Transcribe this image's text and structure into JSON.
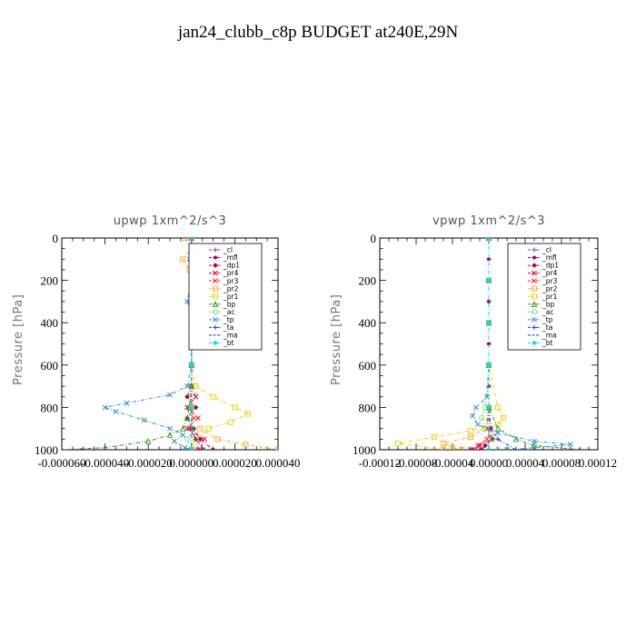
{
  "figure": {
    "title": "jan24_clubb_c8p  BUDGET at240E,29N"
  },
  "chart_data": [
    {
      "type": "line",
      "title": "upwp   1xm^2/s^3",
      "ylabel": "Pressure [hPa]",
      "xlabel": "",
      "xlim": [
        -6e-05,
        4e-05
      ],
      "ylim": [
        1000,
        0
      ],
      "xticks": [
        "-0.000060",
        "-0.000040",
        "-0.000020",
        "0.000000",
        "0.000020",
        "0.000040"
      ],
      "yticks": [
        "0",
        "200",
        "400",
        "600",
        "800",
        "1000"
      ],
      "legend_position": "top-right",
      "series": [
        {
          "name": "_cl",
          "color": "#7b3fd0",
          "marker": "plus",
          "y": [
            0,
            100,
            200,
            300,
            400,
            500,
            600,
            700,
            800,
            900,
            1000
          ],
          "x": [
            0,
            0,
            0,
            0,
            0,
            0,
            0,
            0,
            0,
            0,
            0
          ]
        },
        {
          "name": "_mfl",
          "color": "#9b006f",
          "marker": "dot",
          "y": [
            0,
            100,
            200,
            300,
            400,
            500,
            600,
            700,
            800,
            900,
            1000
          ],
          "x": [
            0,
            0,
            0,
            0,
            0,
            0,
            0,
            0,
            0,
            0,
            0
          ]
        },
        {
          "name": "_dp1",
          "color": "#b0003c",
          "marker": "diamond",
          "y": [
            0,
            100,
            200,
            300,
            400,
            500,
            600,
            700,
            750,
            800,
            850,
            900,
            950,
            1000
          ],
          "x": [
            0,
            0,
            0,
            0,
            0,
            0,
            0,
            0,
            -2e-06,
            2e-06,
            -2e-06,
            1e-06,
            4e-06,
            1e-05
          ]
        },
        {
          "name": "_pr4",
          "color": "#e8003a",
          "marker": "x",
          "y": [
            0,
            100,
            200,
            300,
            400,
            500,
            600,
            700,
            750,
            800,
            850,
            900,
            950,
            1000
          ],
          "x": [
            0,
            0,
            0,
            0,
            0,
            0,
            0,
            0,
            2e-06,
            -2e-06,
            3e-06,
            -2e-06,
            6e-06,
            4e-06
          ]
        },
        {
          "name": "_pr3",
          "color": "#ff2030",
          "marker": "x",
          "y": [
            0,
            200,
            400,
            600,
            700,
            800,
            850,
            900,
            950,
            1000
          ],
          "x": [
            0,
            0,
            0,
            0,
            0,
            -1e-06,
            1e-06,
            -1e-06,
            2e-06,
            3e-06
          ]
        },
        {
          "name": "_pr2",
          "color": "#ffaa22",
          "marker": "square",
          "y": [
            0,
            50,
            100,
            150,
            200,
            300,
            400,
            500,
            600,
            700,
            800,
            900,
            950,
            975,
            1000
          ],
          "x": [
            -3e-06,
            0,
            -4e-06,
            -1e-06,
            0,
            0,
            0,
            0,
            0,
            0,
            0,
            4e-06,
            1.2e-05,
            2.5e-05,
            4e-05
          ]
        },
        {
          "name": "_pr1",
          "color": "#f0d000",
          "marker": "square",
          "y": [
            0,
            200,
            400,
            600,
            700,
            750,
            800,
            830,
            870,
            900,
            950,
            1000
          ],
          "x": [
            0,
            0,
            0,
            0,
            2e-06,
            1e-05,
            2e-05,
            2.6e-05,
            1.8e-05,
            8e-06,
            2e-06,
            0
          ]
        },
        {
          "name": "_bp",
          "color": "#20a020",
          "marker": "triangle",
          "y": [
            0,
            200,
            400,
            600,
            700,
            800,
            850,
            900,
            930,
            960,
            990,
            1000
          ],
          "x": [
            0,
            0,
            0,
            0,
            0,
            -1e-06,
            -2e-06,
            -4e-06,
            -1e-05,
            -2e-05,
            -4e-05,
            -6e-05
          ]
        },
        {
          "name": "_ac",
          "color": "#80e070",
          "marker": "circle",
          "y": [
            0,
            200,
            400,
            600,
            800,
            900,
            950,
            1000
          ],
          "x": [
            0,
            0,
            0,
            0,
            0,
            1e-06,
            -2e-06,
            0
          ]
        },
        {
          "name": "_tp",
          "color": "#2f8fdf",
          "marker": "x",
          "y": [
            0,
            50,
            100,
            200,
            300,
            350,
            400,
            500,
            600,
            700,
            740,
            780,
            800,
            820,
            860,
            900,
            930,
            960,
            990,
            1000
          ],
          "x": [
            0,
            1e-06,
            -1e-06,
            0,
            -2e-06,
            0,
            0,
            0,
            0,
            -2e-06,
            -1e-05,
            -3e-05,
            -4e-05,
            -3.5e-05,
            -2.2e-05,
            -1e-05,
            -4e-06,
            -8e-06,
            -3e-06,
            0
          ]
        },
        {
          "name": "_ta",
          "color": "#1d3fcf",
          "marker": "plus",
          "y": [
            0,
            200,
            400,
            600,
            800,
            900,
            950,
            1000
          ],
          "x": [
            0,
            0,
            0,
            0,
            0,
            0,
            2e-06,
            6e-06
          ]
        },
        {
          "name": "_ma",
          "color": "#223380",
          "marker": "none",
          "y": [
            0,
            200,
            400,
            600,
            800,
            900,
            1000
          ],
          "x": [
            0,
            0,
            0,
            0,
            0,
            0,
            0
          ]
        },
        {
          "name": "_bt",
          "color": "#00e0f0",
          "marker": "diamond",
          "y": [
            0,
            200,
            400,
            600,
            800,
            1000
          ],
          "x": [
            0,
            0,
            0,
            0,
            0,
            0
          ]
        }
      ]
    },
    {
      "type": "line",
      "title": "vpwp   1xm^2/s^3",
      "ylabel": "Pressure [hPa]",
      "xlabel": "",
      "xlim": [
        -0.00012,
        0.00012
      ],
      "ylim": [
        1000,
        0
      ],
      "xticks": [
        "-0.00012",
        "-0.00008",
        "-0.00004",
        "0.00000",
        "0.00004",
        "0.00008",
        "0.00012"
      ],
      "yticks": [
        "0",
        "200",
        "400",
        "600",
        "800",
        "1000"
      ],
      "legend_position": "top-right",
      "series": [
        {
          "name": "_cl",
          "color": "#7b3fd0",
          "marker": "plus",
          "y": [
            0,
            100,
            200,
            300,
            400,
            500,
            600,
            700,
            800,
            900,
            1000
          ],
          "x": [
            0,
            0,
            0,
            0,
            0,
            0,
            0,
            0,
            0,
            0,
            0
          ]
        },
        {
          "name": "_mfl",
          "color": "#9b006f",
          "marker": "dot",
          "y": [
            0,
            100,
            200,
            300,
            400,
            500,
            600,
            700,
            800,
            900,
            1000
          ],
          "x": [
            0,
            0,
            0,
            0,
            0,
            0,
            0,
            0,
            0,
            0,
            0
          ]
        },
        {
          "name": "_dp1",
          "color": "#b0003c",
          "marker": "diamond",
          "y": [
            0,
            200,
            400,
            600,
            800,
            900,
            950,
            980,
            1000
          ],
          "x": [
            0,
            0,
            0,
            0,
            0,
            2e-06,
            4e-06,
            -4e-06,
            -8e-06
          ]
        },
        {
          "name": "_pr4",
          "color": "#e8003a",
          "marker": "x",
          "y": [
            0,
            200,
            400,
            600,
            800,
            900,
            950,
            980,
            1000
          ],
          "x": [
            0,
            0,
            0,
            0,
            0,
            -2e-06,
            3e-06,
            -1e-05,
            -2e-05
          ]
        },
        {
          "name": "_pr3",
          "color": "#ff2030",
          "marker": "x",
          "y": [
            0,
            200,
            400,
            600,
            800,
            900,
            950,
            980,
            1000
          ],
          "x": [
            0,
            0,
            0,
            0,
            0,
            2e-06,
            -2e-06,
            -1.2e-05,
            -1.5e-05
          ]
        },
        {
          "name": "_pr2",
          "color": "#ffaa22",
          "marker": "square",
          "y": [
            0,
            200,
            400,
            600,
            800,
            900,
            940,
            970,
            990,
            1000
          ],
          "x": [
            0,
            0,
            0,
            0,
            0,
            -5e-06,
            -2e-05,
            -5e-05,
            -4e-05,
            -3e-05
          ]
        },
        {
          "name": "_pr1",
          "color": "#f0d000",
          "marker": "square",
          "y": [
            0,
            200,
            400,
            600,
            800,
            850,
            880,
            910,
            940,
            970,
            1000
          ],
          "x": [
            0,
            0,
            0,
            0,
            1e-05,
            1.6e-05,
            1e-05,
            -2e-05,
            -6e-05,
            -0.0001,
            -5e-05
          ]
        },
        {
          "name": "_bp",
          "color": "#20a020",
          "marker": "triangle",
          "y": [
            0,
            200,
            400,
            600,
            800,
            900,
            950,
            980,
            1000
          ],
          "x": [
            0,
            0,
            0,
            0,
            0,
            1e-05,
            3e-05,
            5e-05,
            0.0001
          ]
        },
        {
          "name": "_ac",
          "color": "#80e070",
          "marker": "circle",
          "y": [
            0,
            200,
            400,
            600,
            800,
            850,
            900,
            950,
            1000
          ],
          "x": [
            0,
            0,
            0,
            0,
            -4e-06,
            -8e-06,
            -3e-06,
            4e-06,
            1e-05
          ]
        },
        {
          "name": "_tp",
          "color": "#2f8fdf",
          "marker": "x",
          "y": [
            0,
            200,
            400,
            600,
            750,
            800,
            840,
            880,
            920,
            960,
            975,
            990,
            1000
          ],
          "x": [
            0,
            0,
            0,
            0,
            -2e-06,
            -1.4e-05,
            -1.8e-05,
            -1.2e-05,
            1e-05,
            5e-05,
            9e-05,
            5e-05,
            2e-05
          ]
        },
        {
          "name": "_ta",
          "color": "#1d3fcf",
          "marker": "plus",
          "y": [
            0,
            200,
            400,
            600,
            800,
            900,
            950,
            1000
          ],
          "x": [
            0,
            0,
            0,
            0,
            0,
            2e-06,
            1e-05,
            3e-05
          ]
        },
        {
          "name": "_ma",
          "color": "#223380",
          "marker": "none",
          "y": [
            0,
            200,
            400,
            600,
            800,
            900,
            1000
          ],
          "x": [
            0,
            0,
            0,
            0,
            0,
            0,
            0
          ]
        },
        {
          "name": "_bt",
          "color": "#00e0f0",
          "marker": "diamond",
          "y": [
            0,
            200,
            400,
            600,
            800,
            1000
          ],
          "x": [
            0,
            0,
            0,
            0,
            0,
            0
          ]
        }
      ]
    }
  ]
}
